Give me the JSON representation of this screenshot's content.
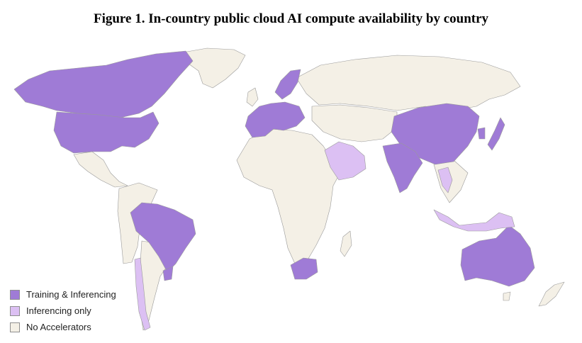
{
  "figure": {
    "title": "Figure 1. In-country public cloud AI compute availability by country"
  },
  "colors": {
    "training_inferencing": "#9f7bd6",
    "inferencing_only": "#dcc0f3",
    "no_accelerators": "#f4f0e6",
    "border": "#9a9a9a"
  },
  "legend": [
    {
      "key": "training_inferencing",
      "label": "Training & Inferencing"
    },
    {
      "key": "inferencing_only",
      "label": "Inferencing only"
    },
    {
      "key": "no_accelerators",
      "label": "No Accelerators"
    }
  ],
  "regions": [
    {
      "name": "United States",
      "category": "training_inferencing"
    },
    {
      "name": "Canada",
      "category": "training_inferencing"
    },
    {
      "name": "Brazil",
      "category": "training_inferencing"
    },
    {
      "name": "Uruguay",
      "category": "training_inferencing"
    },
    {
      "name": "Chile",
      "category": "inferencing_only"
    },
    {
      "name": "Western Europe",
      "category": "training_inferencing"
    },
    {
      "name": "Scandinavia",
      "category": "training_inferencing"
    },
    {
      "name": "South Africa",
      "category": "training_inferencing"
    },
    {
      "name": "Saudi Arabia",
      "category": "inferencing_only"
    },
    {
      "name": "India",
      "category": "training_inferencing"
    },
    {
      "name": "China",
      "category": "training_inferencing"
    },
    {
      "name": "Japan",
      "category": "training_inferencing"
    },
    {
      "name": "South Korea",
      "category": "training_inferencing"
    },
    {
      "name": "Thailand",
      "category": "inferencing_only"
    },
    {
      "name": "Indonesia",
      "category": "inferencing_only"
    },
    {
      "name": "Australia",
      "category": "training_inferencing"
    },
    {
      "name": "Greenland",
      "category": "no_accelerators"
    },
    {
      "name": "Russia",
      "category": "no_accelerators"
    },
    {
      "name": "Africa",
      "category": "no_accelerators"
    },
    {
      "name": "Mexico",
      "category": "no_accelerators"
    },
    {
      "name": "Argentina",
      "category": "no_accelerators"
    }
  ]
}
